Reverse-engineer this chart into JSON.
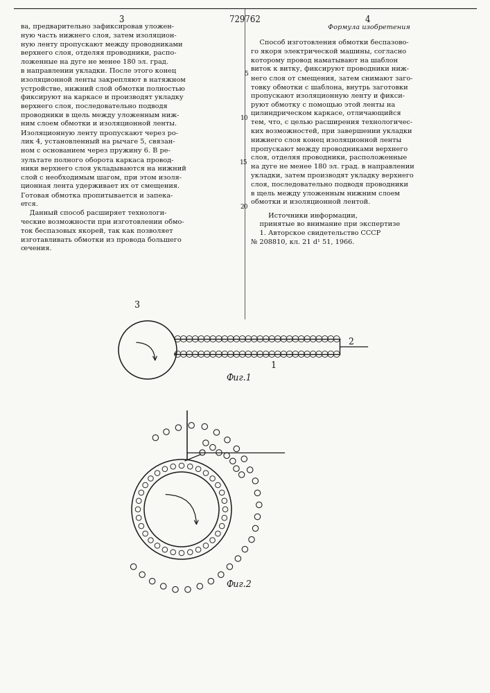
{
  "patent_number": "729762",
  "page_left": "3",
  "page_right": "4",
  "text_left_col": [
    "ва, предварительно зафиксировав уложен-",
    "ную часть нижнего слоя, затем изоляцион-",
    "ную ленту пропускают между проводниками",
    "верхнего слоя, отделяя проводники, распо-",
    "ложенные на дуге не менее 180 эл. град.",
    "в направлении укладки. После этого конец",
    "изоляционной ленты закрепляют в натяжном",
    "устройстве, нижний слой обмотки полностью",
    "фиксируют на каркасе и производят укладку",
    "верхнего слоя, последовательно подводя",
    "проводники в щель между уложенным ниж-",
    "ним слоем обмотки и изоляционной ленты.",
    "Изоляционную ленту пропускают через ро-",
    "лик 4, установленный на рычаге 5, связан-",
    "ном с основанием через пружину 6. В ре-",
    "зультате полного оборота каркаса провод-",
    "ники верхнего слоя укладываются на нижний",
    "слой с необходимым шагом, при этом изоля-",
    "ционная лента удерживает их от смещения.",
    "Готовая обмотка пропитывается и запека-",
    "ется.",
    "    Данный способ расширяет технологи-",
    "ческие возможности при изготовлении обмо-",
    "ток беспазовых якорей, так как позволяет",
    "изготавливать обмотки из провода большего",
    "сечения."
  ],
  "text_right_col_italic": "Формула изобретения",
  "text_right_col_body": [
    "    Способ изготовления обмотки беспазово-",
    "го якоря электрической машины, согласно",
    "которому провод наматывают на шаблон",
    "виток к витку, фиксируют проводники ниж-",
    "него слоя от смещения, затем снимают заго-",
    "товку обмотки с шаблона, внутрь заготовки",
    "пропускают изоляционную ленту и фикси-",
    "руют обмотку с помощью этой ленты на",
    "цилиндрическом каркасе, отличающийся",
    "тем, что, с целью расширения технологичес-",
    "ких возможностей, при завершении укладки",
    "нижнего слоя конец изоляционной ленты",
    "пропускают между проводниками верхнего",
    "слоя, отделяя проводники, расположенные",
    "на дуге не менее 180 эл. град. в направлении",
    "укладки, затем производят укладку верхнего",
    "слоя, последовательно подводя проводники",
    "в щель между уложенным нижним слоем",
    "обмотки и изоляционной лентой."
  ],
  "text_sources_header": "        Источники информации,",
  "text_sources_lines": [
    "    принятые во внимание при экспертизе",
    "    1. Авторское свидетельство СССР",
    "№ 208810, кл. 21 d¹ 51, 1966."
  ],
  "line_numbers_right": [
    "5",
    "10",
    "15",
    "20"
  ],
  "fig1_caption": "Фиг.1",
  "fig2_caption": "Фиг.2",
  "bg_color": "#f8f8f4",
  "line_color": "#1a1a1a",
  "text_color": "#1a1a1a"
}
